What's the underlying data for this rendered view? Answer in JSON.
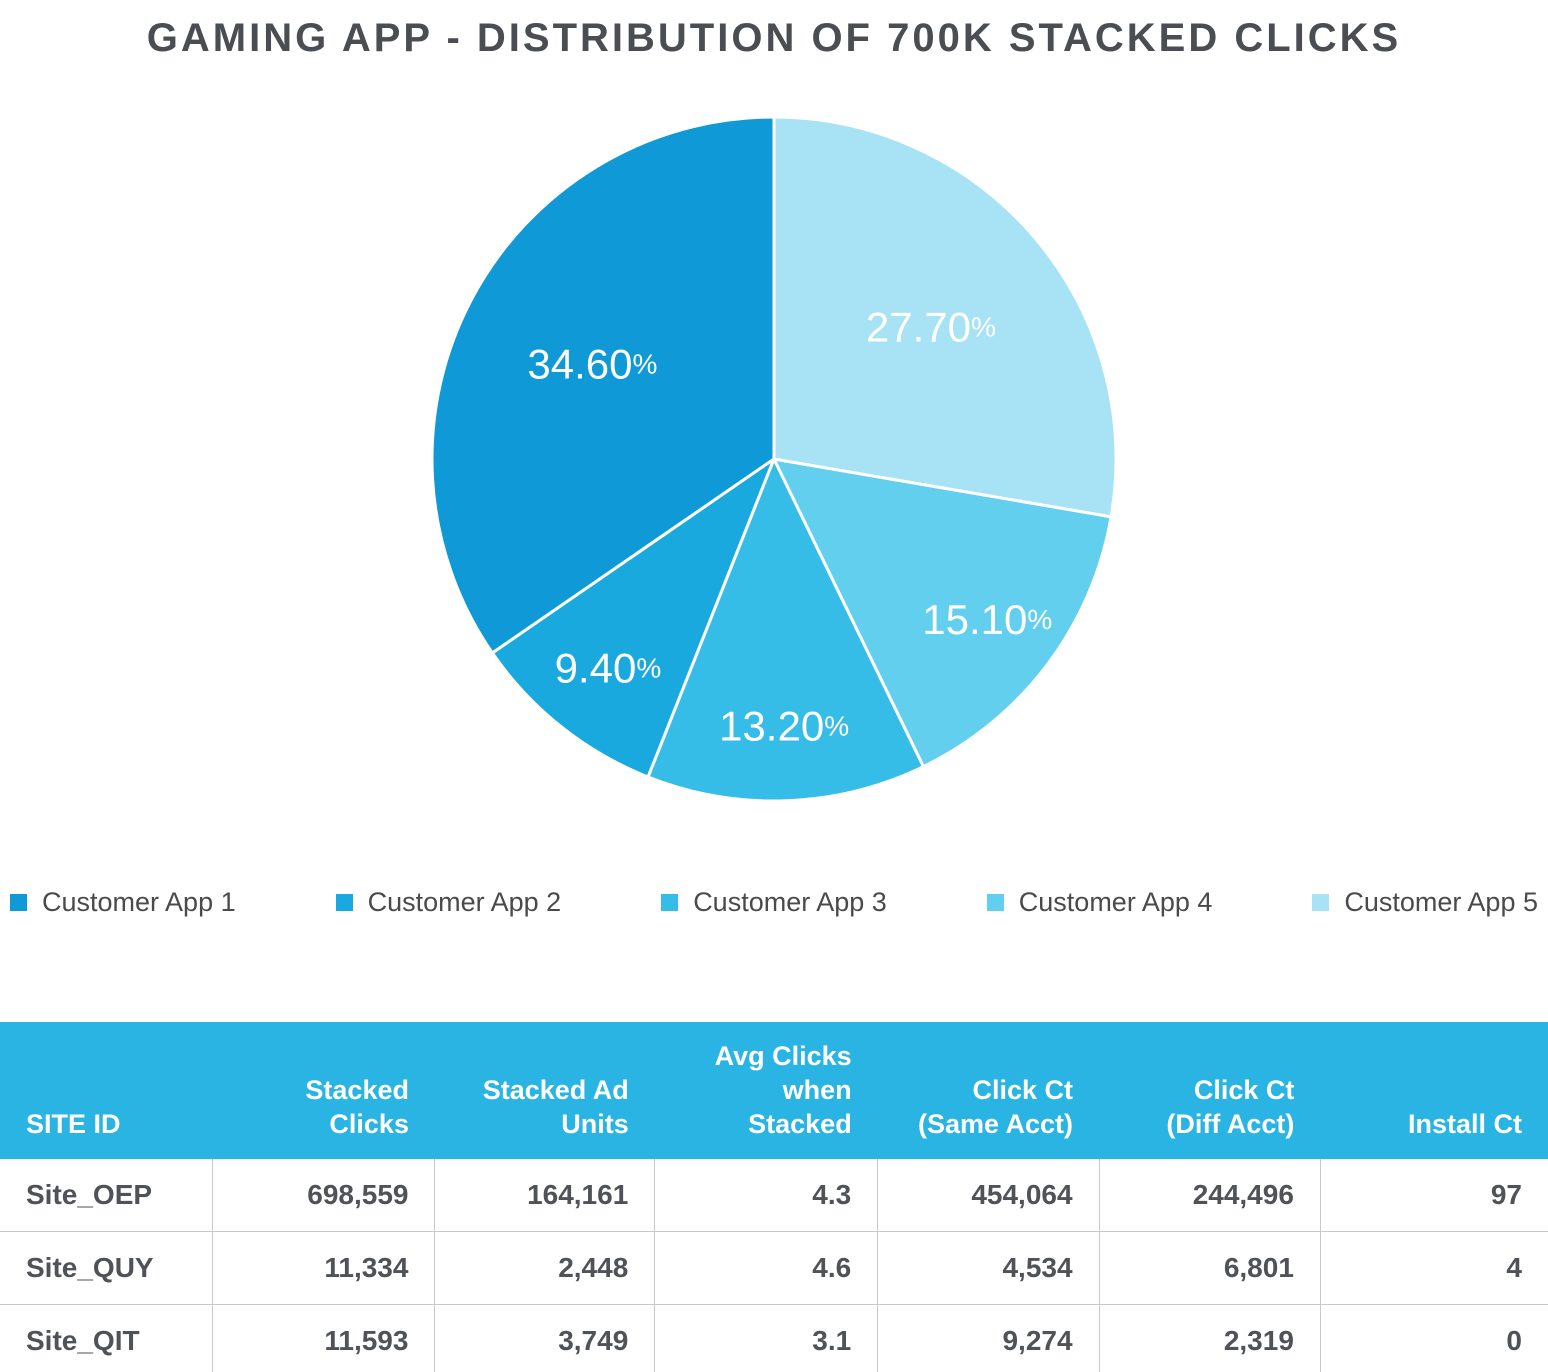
{
  "chart_data": {
    "type": "pie",
    "title": "GAMING APP - DISTRIBUTION OF 700K STACKED CLICKS",
    "labels": [
      "Customer App 1",
      "Customer App 2",
      "Customer App 3",
      "Customer App 4",
      "Customer App 5"
    ],
    "values": [
      34.6,
      9.4,
      13.2,
      15.1,
      27.7
    ],
    "value_labels": [
      "34.60%",
      "9.40%",
      "13.20%",
      "15.10%",
      "27.70%"
    ],
    "colors": [
      "#0f99d6",
      "#19a9df",
      "#36bde7",
      "#63cfee",
      "#a7e3f5"
    ],
    "units": "%",
    "start_angle": "12-o-clock",
    "direction": "counterclockwise",
    "legend_position": "bottom",
    "slice_border_color": "#ffffff"
  },
  "table": {
    "header_bg": "#29b4e4",
    "columns": [
      {
        "label": "SITE ID",
        "align": "left"
      },
      {
        "label": "Stacked\nClicks",
        "align": "right"
      },
      {
        "label": "Stacked Ad\nUnits",
        "align": "right"
      },
      {
        "label": "Avg Clicks\nwhen Stacked",
        "align": "right"
      },
      {
        "label": "Click Ct\n(Same Acct)",
        "align": "right"
      },
      {
        "label": "Click Ct\n(Diff Acct)",
        "align": "right"
      },
      {
        "label": "Install Ct",
        "align": "right"
      }
    ],
    "rows": [
      [
        "Site_OEP",
        "698,559",
        "164,161",
        "4.3",
        "454,064",
        "244,496",
        "97"
      ],
      [
        "Site_QUY",
        "11,334",
        "2,448",
        "4.6",
        "4,534",
        "6,801",
        "4"
      ],
      [
        "Site_QIT",
        "11,593",
        "3,749",
        "3.1",
        "9,274",
        "2,319",
        "0"
      ]
    ]
  }
}
